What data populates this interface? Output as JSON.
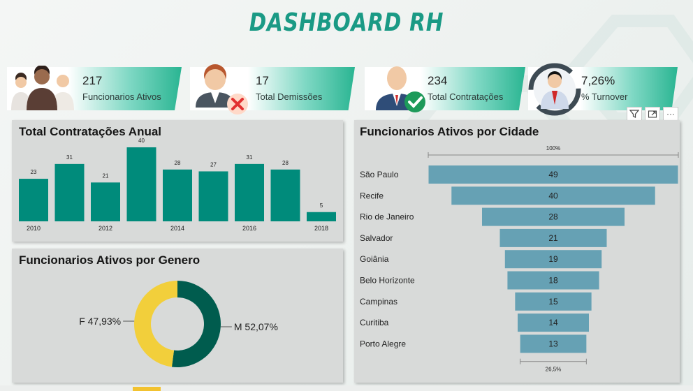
{
  "title": "DASHBOARD RH",
  "kpis": [
    {
      "value": "217",
      "label": "Funcionarios Ativos",
      "icon": "people-group-icon"
    },
    {
      "value": "17",
      "label": "Total Demissões",
      "icon": "person-remove-icon"
    },
    {
      "value": "234",
      "label": "Total Contratações",
      "icon": "person-check-icon"
    },
    {
      "value": "7,26%",
      "label": "% Turnover",
      "icon": "person-cycle-icon"
    }
  ],
  "toolbar": {
    "filter_icon": "filter-icon",
    "focus_icon": "focus-mode-icon",
    "more_label": "···"
  },
  "panels": {
    "annual": {
      "title": "Total Contratações Anual"
    },
    "gender": {
      "title": "Funcionarios Ativos por Genero"
    },
    "city": {
      "title": "Funcionarios Ativos por Cidade"
    }
  },
  "colors": {
    "accent": "#1a9a85",
    "bar": "#008b7b",
    "funnel": "#66a1b4",
    "donut_m": "#005c4e",
    "donut_f": "#f2cf3b",
    "panel": "#d8dad9"
  },
  "chart_data": [
    {
      "type": "bar",
      "title": "Total Contratações Anual",
      "categories": [
        "2010",
        "2011",
        "2012",
        "2013",
        "2014",
        "2015",
        "2016",
        "2017",
        "2018"
      ],
      "values": [
        23,
        31,
        21,
        40,
        28,
        27,
        31,
        28,
        5
      ],
      "visible_tick_labels": [
        "2010",
        "2012",
        "2014",
        "2016",
        "2018"
      ],
      "data_labels": true
    },
    {
      "type": "pie",
      "title": "Funcionarios Ativos por Genero",
      "donut": true,
      "slices": [
        {
          "label": "M",
          "value": 52.07,
          "display": "M 52,07%"
        },
        {
          "label": "F",
          "value": 47.93,
          "display": "F 47,93%"
        }
      ]
    },
    {
      "type": "bar",
      "subtype": "funnel",
      "title": "Funcionarios Ativos por Cidade",
      "categories": [
        "São Paulo",
        "Recife",
        "Rio de Janeiro",
        "Salvador",
        "Goiânia",
        "Belo Horizonte",
        "Campinas",
        "Curitiba",
        "Porto Alegre"
      ],
      "values": [
        49,
        40,
        28,
        21,
        19,
        18,
        15,
        14,
        13
      ],
      "top_label": "100%",
      "bottom_label": "26,5%"
    }
  ]
}
